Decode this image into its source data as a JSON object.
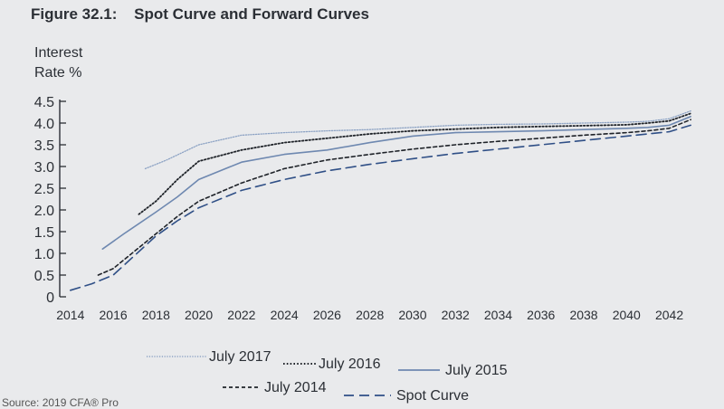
{
  "figure": {
    "number": "Figure 32.1:",
    "title": "Spot Curve and Forward Curves"
  },
  "ylabel_lines": [
    "Interest",
    "Rate %"
  ],
  "source_text": "Source: 2019 CFA® Pro",
  "chart_data": {
    "type": "line",
    "title": "Spot Curve and Forward Curves",
    "ylabel": "Interest Rate %",
    "xlabel": "",
    "ylim": [
      0,
      4.5
    ],
    "xlim": [
      2013.5,
      2043.5
    ],
    "y_ticks": [
      "0",
      "0.5",
      "1.0",
      "1.5",
      "2.0",
      "2.5",
      "3.0",
      "3.5",
      "4.0",
      "4.5"
    ],
    "x_ticks": [
      "2014",
      "2016",
      "2018",
      "2020",
      "2022",
      "2024",
      "2026",
      "2028",
      "2030",
      "2032",
      "2034",
      "2036",
      "2038",
      "2040",
      "2042"
    ],
    "grid": false,
    "legend_position": "bottom",
    "series": [
      {
        "name": "July 2017",
        "style": "dotted-thin",
        "color": "#8da3c4",
        "points": [
          [
            2017.5,
            2.95
          ],
          [
            2018.5,
            3.15
          ],
          [
            2020,
            3.5
          ],
          [
            2022,
            3.72
          ],
          [
            2024,
            3.78
          ],
          [
            2026,
            3.82
          ],
          [
            2028,
            3.85
          ],
          [
            2030,
            3.9
          ],
          [
            2032,
            3.95
          ],
          [
            2034,
            3.97
          ],
          [
            2036,
            3.98
          ],
          [
            2038,
            4.0
          ],
          [
            2040,
            4.02
          ],
          [
            2041,
            4.04
          ],
          [
            2042,
            4.1
          ],
          [
            2043,
            4.28
          ]
        ]
      },
      {
        "name": "July 2016",
        "style": "dotted",
        "color": "#1f2329",
        "points": [
          [
            2017.2,
            1.9
          ],
          [
            2018,
            2.2
          ],
          [
            2019,
            2.7
          ],
          [
            2020,
            3.12
          ],
          [
            2022,
            3.38
          ],
          [
            2024,
            3.55
          ],
          [
            2026,
            3.65
          ],
          [
            2028,
            3.75
          ],
          [
            2030,
            3.82
          ],
          [
            2032,
            3.86
          ],
          [
            2034,
            3.9
          ],
          [
            2036,
            3.92
          ],
          [
            2038,
            3.94
          ],
          [
            2040,
            3.96
          ],
          [
            2041,
            4.0
          ],
          [
            2042,
            4.05
          ],
          [
            2043,
            4.22
          ]
        ]
      },
      {
        "name": "July 2015",
        "style": "solid",
        "color": "#6e88b0",
        "points": [
          [
            2015.5,
            1.1
          ],
          [
            2016.5,
            1.45
          ],
          [
            2018,
            1.95
          ],
          [
            2019,
            2.3
          ],
          [
            2020,
            2.7
          ],
          [
            2022,
            3.1
          ],
          [
            2024,
            3.28
          ],
          [
            2026,
            3.38
          ],
          [
            2028,
            3.55
          ],
          [
            2030,
            3.7
          ],
          [
            2032,
            3.78
          ],
          [
            2034,
            3.8
          ],
          [
            2036,
            3.82
          ],
          [
            2038,
            3.85
          ],
          [
            2040,
            3.88
          ],
          [
            2041,
            3.9
          ],
          [
            2042,
            3.95
          ],
          [
            2043,
            4.15
          ]
        ]
      },
      {
        "name": "July 2014",
        "style": "short-dash",
        "color": "#1f2329",
        "points": [
          [
            2015.3,
            0.5
          ],
          [
            2016,
            0.65
          ],
          [
            2017,
            1.05
          ],
          [
            2018,
            1.45
          ],
          [
            2019,
            1.85
          ],
          [
            2020,
            2.2
          ],
          [
            2022,
            2.62
          ],
          [
            2024,
            2.95
          ],
          [
            2026,
            3.15
          ],
          [
            2028,
            3.28
          ],
          [
            2030,
            3.4
          ],
          [
            2032,
            3.5
          ],
          [
            2034,
            3.58
          ],
          [
            2036,
            3.65
          ],
          [
            2038,
            3.72
          ],
          [
            2040,
            3.78
          ],
          [
            2041,
            3.82
          ],
          [
            2042,
            3.88
          ],
          [
            2043,
            4.08
          ]
        ]
      },
      {
        "name": "Spot Curve",
        "style": "long-dash",
        "color": "#2f4f86",
        "points": [
          [
            2014,
            0.15
          ],
          [
            2015,
            0.3
          ],
          [
            2016,
            0.5
          ],
          [
            2017,
            0.95
          ],
          [
            2018,
            1.4
          ],
          [
            2019,
            1.75
          ],
          [
            2020,
            2.05
          ],
          [
            2022,
            2.45
          ],
          [
            2024,
            2.7
          ],
          [
            2026,
            2.9
          ],
          [
            2028,
            3.05
          ],
          [
            2030,
            3.18
          ],
          [
            2032,
            3.3
          ],
          [
            2034,
            3.4
          ],
          [
            2036,
            3.5
          ],
          [
            2038,
            3.6
          ],
          [
            2040,
            3.7
          ],
          [
            2041,
            3.75
          ],
          [
            2042,
            3.8
          ],
          [
            2043,
            3.95
          ]
        ]
      }
    ]
  }
}
